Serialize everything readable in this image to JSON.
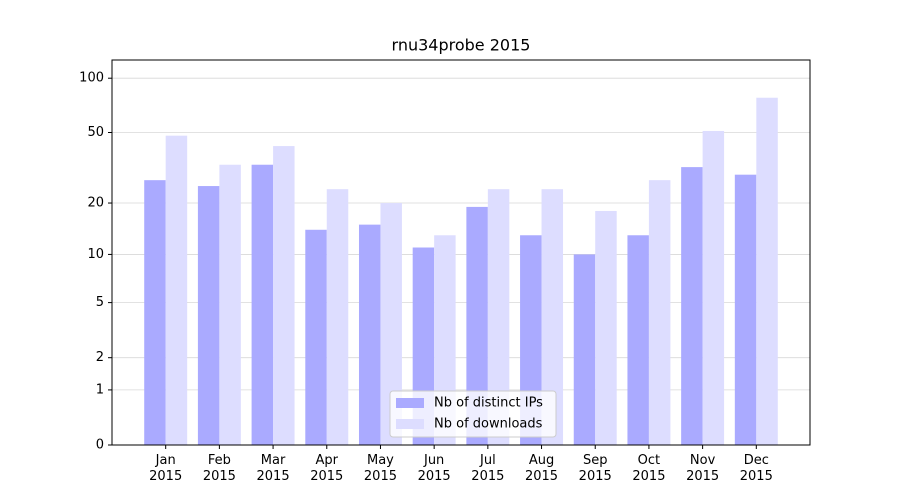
{
  "chart_data": {
    "type": "bar",
    "title": "rnu34probe 2015",
    "categories": [
      "Jan\n2015",
      "Feb\n2015",
      "Mar\n2015",
      "Apr\n2015",
      "May\n2015",
      "Jun\n2015",
      "Jul\n2015",
      "Aug\n2015",
      "Sep\n2015",
      "Oct\n2015",
      "Nov\n2015",
      "Dec\n2015"
    ],
    "series": [
      {
        "name": "Nb of distinct IPs",
        "color": "#aaaaff",
        "values": [
          27,
          25,
          33,
          14,
          15,
          11,
          19,
          13,
          10,
          13,
          32,
          29
        ]
      },
      {
        "name": "Nb of downloads",
        "color": "#ddddff",
        "values": [
          48,
          33,
          42,
          24,
          20,
          13,
          24,
          24,
          18,
          27,
          51,
          78
        ]
      }
    ],
    "y_scale": "log1p",
    "ylim": [
      0,
      126
    ],
    "yticks": [
      0,
      1,
      2,
      5,
      10,
      20,
      50,
      100
    ],
    "grid": true,
    "legend": "lower center"
  }
}
